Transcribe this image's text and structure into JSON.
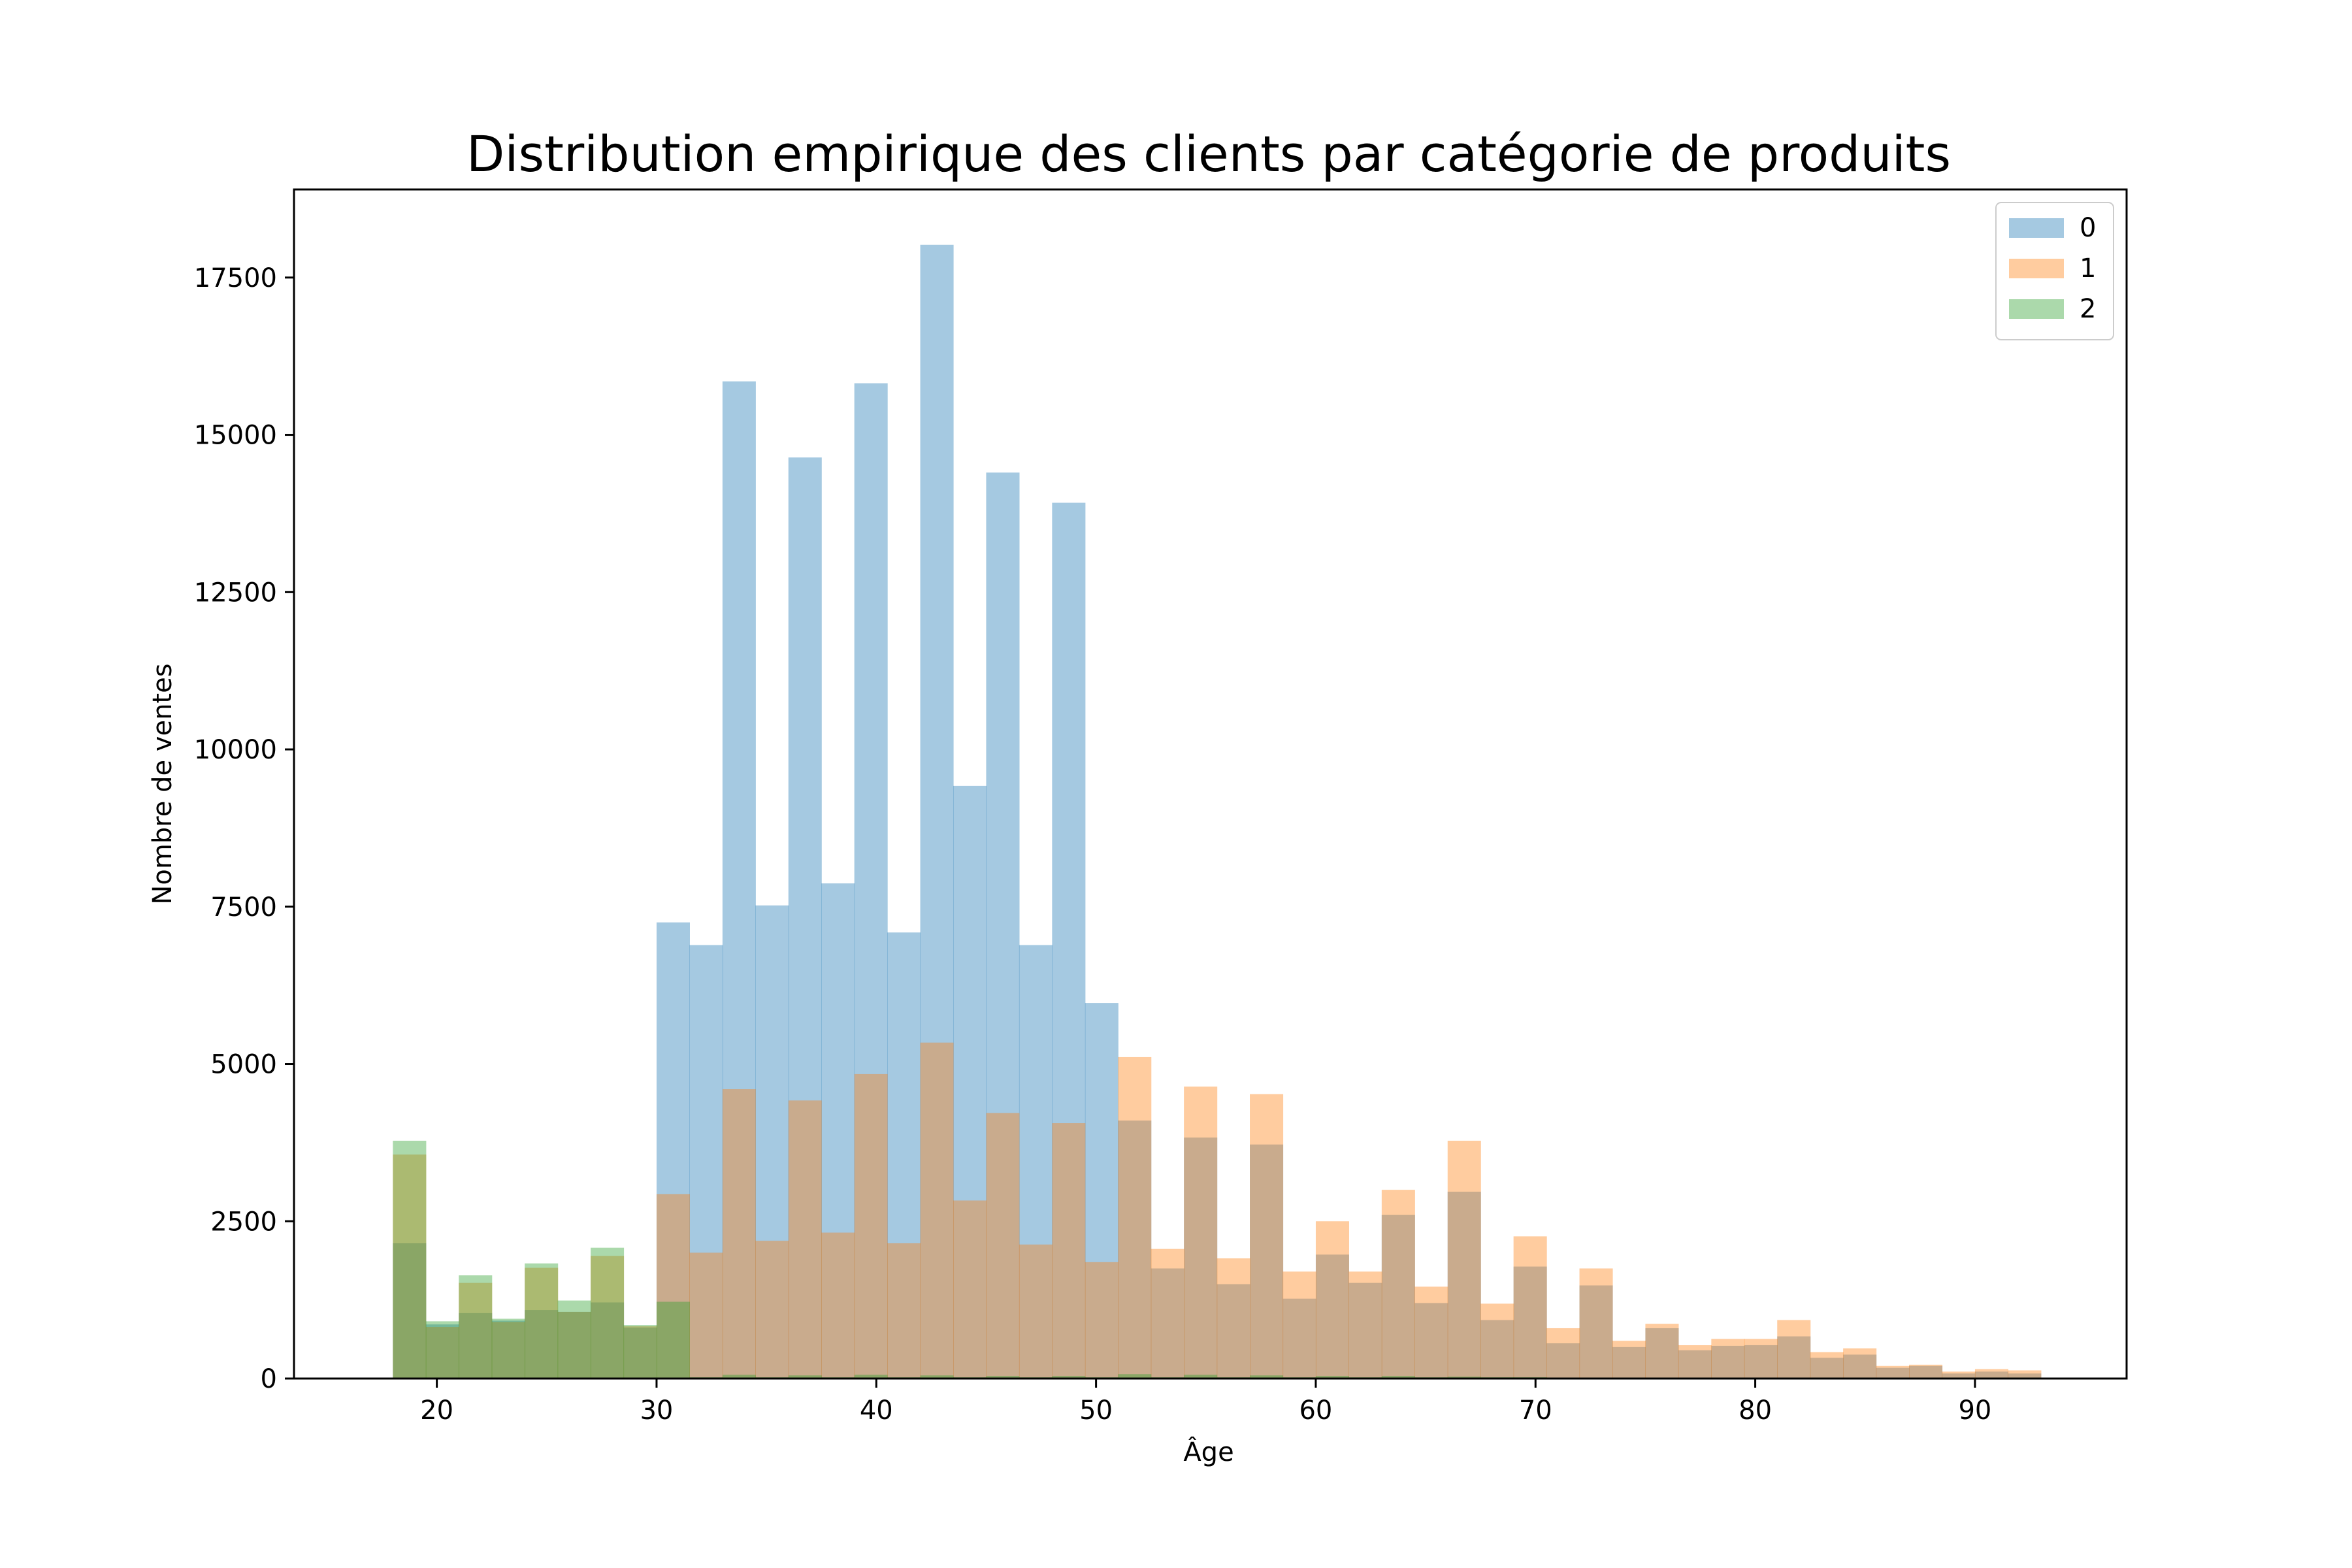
{
  "chart_data": {
    "type": "bar",
    "title": "Distribution empirique des clients par catégorie de produits",
    "xlabel": "Âge",
    "ylabel": "Nombre de ventes",
    "xlim": [
      13.5,
      96.9
    ],
    "ylim": [
      0,
      18900
    ],
    "xticks": [
      20,
      30,
      40,
      50,
      60,
      70,
      80,
      90
    ],
    "yticks": [
      0,
      2500,
      5000,
      7500,
      10000,
      12500,
      15000,
      17500
    ],
    "bin_start": 18,
    "bin_width": 1.5,
    "grid": false,
    "legend_position": "top-right",
    "series": [
      {
        "name": "0",
        "color": "#1f77b4",
        "values": [
          2150,
          860,
          1040,
          920,
          1090,
          1060,
          1210,
          810,
          7250,
          6890,
          15850,
          7520,
          14640,
          7870,
          15820,
          7090,
          18020,
          9420,
          14400,
          6890,
          13920,
          5970,
          4100,
          1750,
          3830,
          1500,
          3720,
          1270,
          1970,
          1520,
          2600,
          1200,
          2970,
          930,
          1780,
          560,
          1480,
          500,
          800,
          450,
          520,
          530,
          670,
          330,
          380,
          170,
          200,
          80,
          110,
          80,
          0
        ]
      },
      {
        "name": "1",
        "color": "#ff7f0e",
        "values": [
          3560,
          820,
          1520,
          900,
          1760,
          1060,
          1950,
          830,
          2930,
          2000,
          4600,
          2190,
          4420,
          2320,
          4840,
          2150,
          5340,
          2830,
          4220,
          2130,
          4060,
          1850,
          5110,
          2060,
          4640,
          1910,
          4520,
          1700,
          2500,
          1700,
          3000,
          1460,
          3780,
          1190,
          2260,
          800,
          1750,
          600,
          870,
          530,
          630,
          630,
          930,
          420,
          480,
          200,
          220,
          110,
          150,
          130,
          0
        ]
      },
      {
        "name": "2",
        "color": "#2ca02c",
        "values": [
          3780,
          910,
          1640,
          950,
          1830,
          1240,
          2080,
          850,
          1220,
          20,
          60,
          20,
          50,
          20,
          60,
          20,
          50,
          20,
          40,
          20,
          40,
          20,
          70,
          20,
          60,
          20,
          50,
          20,
          40,
          20,
          40,
          20,
          30,
          20,
          20,
          10,
          10,
          10,
          10,
          10,
          10,
          10,
          10,
          10,
          10,
          10,
          10,
          10,
          10,
          10,
          0
        ]
      }
    ]
  }
}
